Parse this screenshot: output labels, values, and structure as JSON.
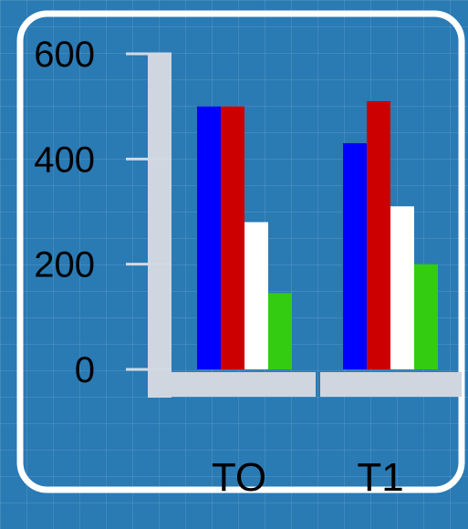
{
  "chart_data": {
    "type": "bar",
    "categories": [
      "TO",
      "T1"
    ],
    "series": [
      {
        "values": [
          500,
          430
        ],
        "color": "#0000ff"
      },
      {
        "values": [
          500,
          510
        ],
        "color": "#cc0000"
      },
      {
        "values": [
          280,
          310
        ],
        "color": "#ffffff"
      },
      {
        "values": [
          145,
          200
        ],
        "color": "#33cc11"
      }
    ],
    "ylim": [
      0,
      600
    ],
    "yticks": [
      "600",
      "400",
      "200",
      "0"
    ],
    "title": "",
    "xlabel": "",
    "ylabel": "",
    "grid": true
  }
}
